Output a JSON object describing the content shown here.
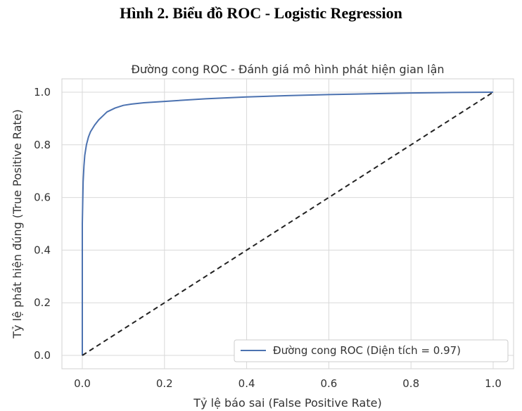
{
  "caption": "Hình 2. Biểu đồ ROC - Logistic Regression",
  "colors": {
    "roc": "#4c72b0",
    "diagonal": "#222222",
    "grid": "#d9d9d9",
    "frame": "#d0d0d0"
  },
  "chart_data": {
    "type": "line",
    "title": "Đường cong ROC - Đánh giá mô hình phát hiện gian lận",
    "xlabel": "Tỷ lệ báo sai (False Positive Rate)",
    "ylabel": "Tỷ lệ phát hiện đúng (True Positive Rate)",
    "xlim": [
      0.0,
      1.0
    ],
    "ylim": [
      0.0,
      1.0
    ],
    "xticks": [
      "0.0",
      "0.2",
      "0.4",
      "0.6",
      "0.8",
      "1.0"
    ],
    "yticks": [
      "0.0",
      "0.2",
      "0.4",
      "0.6",
      "0.8",
      "1.0"
    ],
    "grid": true,
    "legend_position": "bottom-right",
    "series": [
      {
        "name": "Đường cong ROC (Diện tích = 0.97)",
        "style": "solid",
        "x": [
          0.0,
          0.0,
          0.002,
          0.004,
          0.006,
          0.01,
          0.015,
          0.02,
          0.03,
          0.04,
          0.05,
          0.06,
          0.08,
          0.1,
          0.12,
          0.15,
          0.2,
          0.3,
          0.4,
          0.5,
          0.6,
          0.7,
          0.8,
          0.9,
          1.0
        ],
        "y": [
          0.0,
          0.5,
          0.66,
          0.72,
          0.76,
          0.8,
          0.83,
          0.85,
          0.875,
          0.895,
          0.91,
          0.925,
          0.94,
          0.95,
          0.955,
          0.96,
          0.965,
          0.975,
          0.982,
          0.987,
          0.991,
          0.994,
          0.997,
          0.999,
          1.0
        ]
      },
      {
        "name": "",
        "style": "dashed",
        "x": [
          0.0,
          1.0
        ],
        "y": [
          0.0,
          1.0
        ]
      }
    ]
  }
}
